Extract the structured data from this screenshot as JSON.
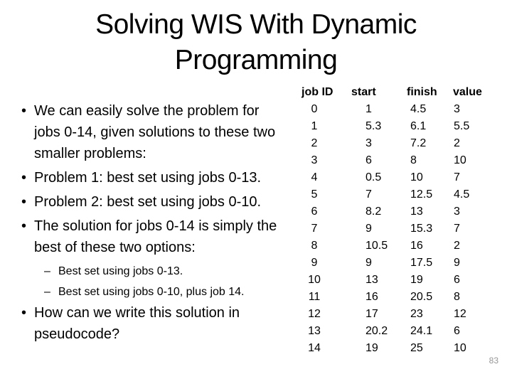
{
  "slide": {
    "background_color": "#ffffff",
    "text_color": "#000000",
    "page_number": "83",
    "page_number_color": "#969696"
  },
  "title": {
    "line1": "Solving WIS With Dynamic",
    "line2": "Programming",
    "full": "Solving WIS With Dynamic Programming"
  },
  "content": {
    "bullet_char": "•",
    "dash_char": "–",
    "bullets": [
      {
        "level": 1,
        "text": "We can easily solve the problem for jobs 0-14, given solutions to these two smaller problems:"
      },
      {
        "level": 1,
        "text": "Problem 1: best set using jobs 0-13."
      },
      {
        "level": 1,
        "text": "Problem 2: best set using jobs 0-10."
      },
      {
        "level": 1,
        "text": "The solution for jobs 0-14 is simply the best of these two options:"
      },
      {
        "level": 2,
        "text": "Best set using jobs 0-13."
      },
      {
        "level": 2,
        "text": "Best set using jobs 0-10, plus job 14."
      },
      {
        "level": 1,
        "text": "How can we write this solution in pseudocode?"
      }
    ]
  },
  "table": {
    "headers": [
      "job ID",
      "start",
      "finish",
      "value"
    ],
    "rows": [
      [
        "0",
        "1",
        "4.5",
        "3"
      ],
      [
        "1",
        "5.3",
        "6.1",
        "5.5"
      ],
      [
        "2",
        "3",
        "7.2",
        "2"
      ],
      [
        "3",
        "6",
        "8",
        "10"
      ],
      [
        "4",
        "0.5",
        "10",
        "7"
      ],
      [
        "5",
        "7",
        "12.5",
        "4.5"
      ],
      [
        "6",
        "8.2",
        "13",
        "3"
      ],
      [
        "7",
        "9",
        "15.3",
        "7"
      ],
      [
        "8",
        "10.5",
        "16",
        "2"
      ],
      [
        "9",
        "9",
        "17.5",
        "9"
      ],
      [
        "10",
        "13",
        "19",
        "6"
      ],
      [
        "11",
        "16",
        "20.5",
        "8"
      ],
      [
        "12",
        "17",
        "23",
        "12"
      ],
      [
        "13",
        "20.2",
        "24.1",
        "6"
      ],
      [
        "14",
        "19",
        "25",
        "10"
      ]
    ]
  }
}
